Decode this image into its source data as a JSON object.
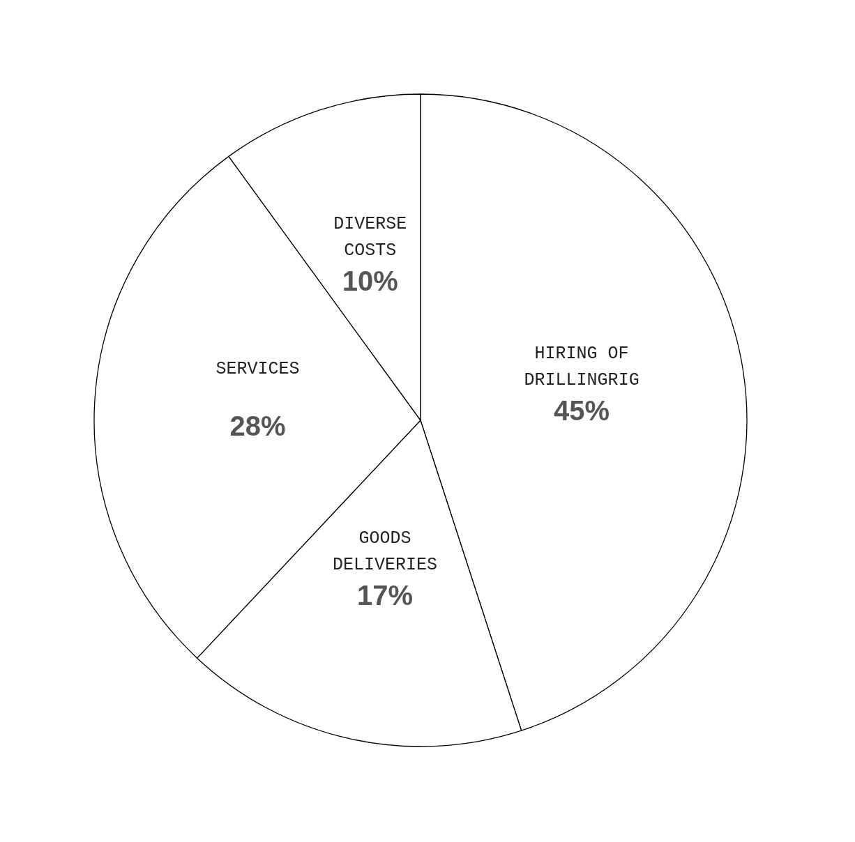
{
  "chart_data": {
    "type": "pie",
    "categories": [
      "HIRING OF DRILLINGRIG",
      "GOODS DELIVERIES",
      "SERVICES",
      "DIVERSE COSTS"
    ],
    "values": [
      45,
      17,
      28,
      10
    ],
    "value_labels": [
      "45%",
      "17%",
      "28%",
      "10%"
    ],
    "colors": [
      "#ffffff",
      "#ffffff",
      "#ffffff",
      "#ffffff"
    ],
    "legend": false
  }
}
